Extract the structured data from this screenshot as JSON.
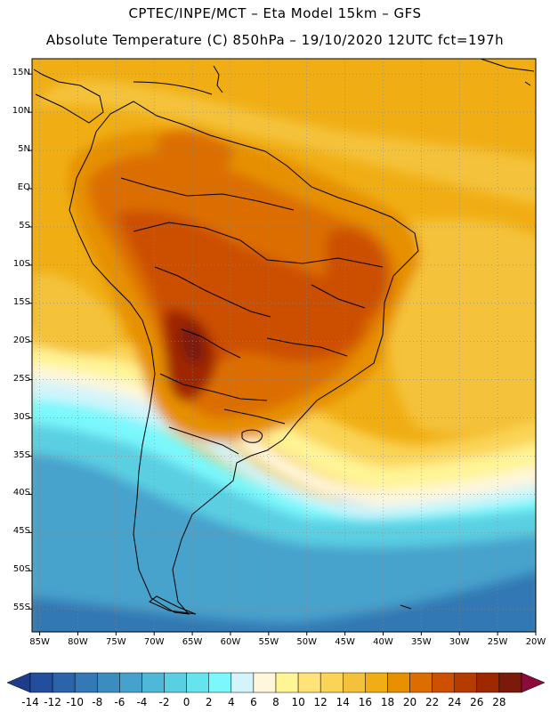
{
  "header": {
    "line1": "CPTEC/INPE/MCT –  Eta Model 15km – GFS",
    "line2": "Absolute Temperature (C) 850hPa – 19/10/2020 12UTC fct=197h"
  },
  "axes": {
    "lat_labels": [
      "15N",
      "10N",
      "5N",
      "EQ",
      "5S",
      "10S",
      "15S",
      "20S",
      "25S",
      "30S",
      "35S",
      "40S",
      "45S",
      "50S",
      "55S"
    ],
    "lon_labels": [
      "85W",
      "80W",
      "75W",
      "70W",
      "65W",
      "60W",
      "55W",
      "50W",
      "45W",
      "40W",
      "35W",
      "30W",
      "25W",
      "20W"
    ]
  },
  "colorbar": {
    "ticks": [
      "-14",
      "-12",
      "-10",
      "-8",
      "-6",
      "-4",
      "-2",
      "0",
      "2",
      "4",
      "6",
      "8",
      "10",
      "12",
      "14",
      "16",
      "18",
      "20",
      "22",
      "24",
      "26",
      "28"
    ],
    "colors": [
      "#1e3c8c",
      "#234e9c",
      "#2c64aa",
      "#3478b6",
      "#3c8cc0",
      "#46a2cc",
      "#4eb8d8",
      "#5acfe2",
      "#66e4ee",
      "#7af8fc",
      "#d2f4fa",
      "#fff6dc",
      "#fff496",
      "#ffe27a",
      "#fad456",
      "#f4c23a",
      "#f0ae14",
      "#e69000",
      "#dc6e00",
      "#cc5000",
      "#b43c00",
      "#a02800",
      "#7a1a0a",
      "#8c0a3c"
    ]
  },
  "map_colors": {
    "ocean_deep": "#3278b4",
    "ocean_mid": "#46a2cc",
    "cold_cyan": "#5acfe2",
    "cyan_light": "#7af8fc",
    "pale": "#d2f4fa",
    "cream": "#fff6dc",
    "yellow": "#fff496",
    "yellow_mid": "#fad456",
    "gold": "#f4c23a",
    "orange_light": "#f0ae14",
    "orange": "#e69000",
    "dark_orange": "#dc6e00",
    "brown": "#cc5000",
    "dark_brown": "#a02800",
    "maroon": "#7a1a0a"
  }
}
